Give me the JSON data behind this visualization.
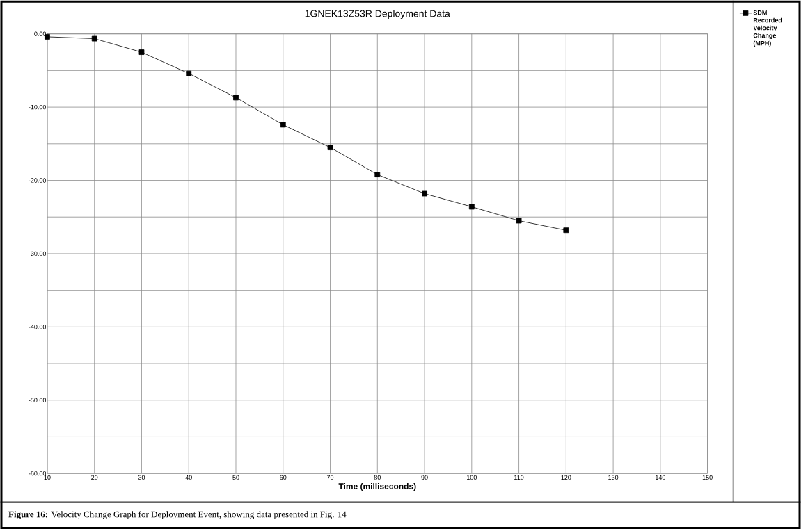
{
  "chart_data": {
    "type": "line",
    "title": "1GNEK13Z53R Deployment Data",
    "xlabel": "Time (milliseconds)",
    "annotations": [
      "**Figure 16:** Velocity Change Graph for Deployment Event, showing data presented in Fig. 14"
    ],
    "x": [
      10,
      20,
      30,
      40,
      50,
      60,
      70,
      80,
      90,
      100,
      110,
      120
    ],
    "series": [
      {
        "name": "SDM Recorded Velocity Change (MPH)",
        "color": "#000000",
        "values": [
          -0.4,
          -0.65,
          -2.5,
          -5.4,
          -8.7,
          -12.4,
          -15.5,
          -19.2,
          -21.8,
          -23.6,
          -25.5,
          -26.8
        ]
      }
    ],
    "xlim": [
      10,
      150
    ],
    "xticks": [
      10,
      20,
      30,
      40,
      50,
      60,
      70,
      80,
      90,
      100,
      110,
      120,
      130,
      140,
      150
    ],
    "ylim": [
      -60,
      0
    ],
    "yticks": [
      {
        "value": -60,
        "label": "-60.00"
      },
      {
        "value": -55,
        "label": null
      },
      {
        "value": -50,
        "label": "-50.00"
      },
      {
        "value": -45,
        "label": null
      },
      {
        "value": -40,
        "label": "-40.00"
      },
      {
        "value": -35,
        "label": null
      },
      {
        "value": -30,
        "label": "-30.00"
      },
      {
        "value": -25,
        "label": null
      },
      {
        "value": -20,
        "label": "-20.00"
      },
      {
        "value": -15,
        "label": null
      },
      {
        "value": -10,
        "label": "-10.00"
      },
      {
        "value": -5,
        "label": null
      },
      {
        "value": 0,
        "label": "0.00"
      }
    ],
    "grid": true,
    "legend": "right",
    "marker": "square",
    "line_style": "solid"
  }
}
